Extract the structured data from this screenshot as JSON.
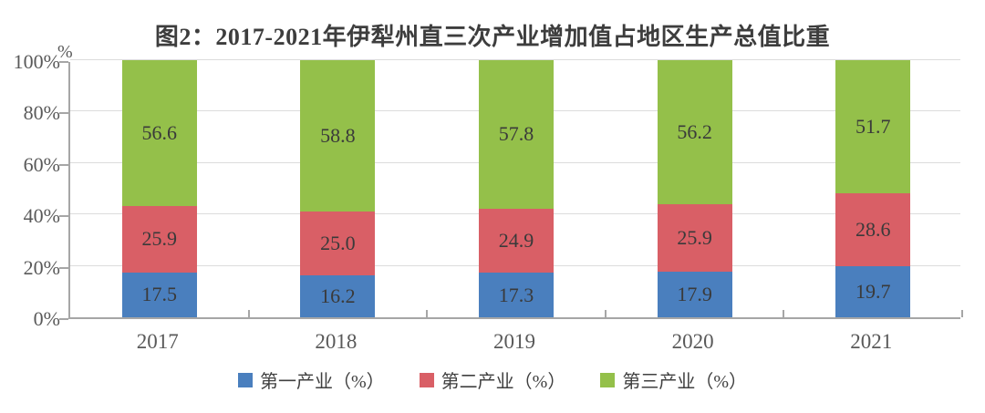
{
  "title": "图2：2017-2021年伊犁州直三次产业增加值占地区生产总值比重",
  "colors": {
    "series_blue": "#4a7fbe",
    "series_red": "#d95f66",
    "series_green": "#94c04a",
    "axis": "#a6a6a6",
    "gridline": "#dcdcdc",
    "title_text": "#3d3d3d",
    "tick_text": "#595959",
    "value_text": "#3a3a3a"
  },
  "chart_data": {
    "type": "bar",
    "stacked": true,
    "title": "图2：2017-2021年伊犁州直三次产业增加值占地区生产总值比重",
    "categories": [
      "2017",
      "2018",
      "2019",
      "2020",
      "2021"
    ],
    "series": [
      {
        "name": "第一产业（%）",
        "color": "#4a7fbe",
        "values": [
          17.5,
          16.2,
          17.3,
          17.9,
          19.7
        ]
      },
      {
        "name": "第二产业（%）",
        "color": "#d95f66",
        "values": [
          25.9,
          25.0,
          24.9,
          25.9,
          28.6
        ]
      },
      {
        "name": "第三产业（%）",
        "color": "#94c04a",
        "values": [
          56.6,
          58.8,
          57.8,
          56.2,
          51.7
        ]
      }
    ],
    "xlabel": "",
    "ylabel": "%",
    "ylim": [
      0,
      100
    ],
    "y_ticks": [
      0,
      20,
      40,
      60,
      80,
      100
    ],
    "y_tick_labels": [
      "0%",
      "20%",
      "40%",
      "60%",
      "80%",
      "100%"
    ],
    "grid": true,
    "legend_position": "bottom",
    "value_labels": true
  }
}
